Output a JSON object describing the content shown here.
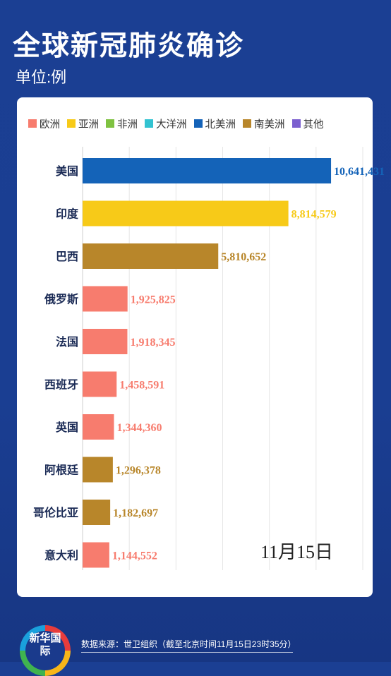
{
  "header": {
    "title": "全球新冠肺炎确诊",
    "unit": "单位:例"
  },
  "legend": [
    {
      "label": "欧洲",
      "color": "#f77c6e"
    },
    {
      "label": "亚洲",
      "color": "#f7ca18"
    },
    {
      "label": "非洲",
      "color": "#7fc241"
    },
    {
      "label": "大洋洲",
      "color": "#33c3d1"
    },
    {
      "label": "北美洲",
      "color": "#1463b8"
    },
    {
      "label": "南美洲",
      "color": "#b8862a"
    },
    {
      "label": "其他",
      "color": "#7b5fcf"
    }
  ],
  "date_label": "11月15日",
  "footer": {
    "logo_text": "新华国际",
    "source": "数据来源：世卫组织（截至北京时间11月15日23时35分）"
  },
  "chart_data": {
    "type": "bar",
    "orientation": "horizontal",
    "categories": [
      "美国",
      "印度",
      "巴西",
      "俄罗斯",
      "法国",
      "西班牙",
      "英国",
      "阿根廷",
      "哥伦比亚",
      "意大利"
    ],
    "values": [
      10641431,
      8814579,
      5810652,
      1925825,
      1918345,
      1458591,
      1344360,
      1296378,
      1182697,
      1144552
    ],
    "value_labels": [
      "10,641,431",
      "8,814,579",
      "5,810,652",
      "1,925,825",
      "1,918,345",
      "1,458,591",
      "1,344,360",
      "1,296,378",
      "1,182,697",
      "1,144,552"
    ],
    "continents": [
      "北美洲",
      "亚洲",
      "南美洲",
      "欧洲",
      "欧洲",
      "欧洲",
      "欧洲",
      "南美洲",
      "南美洲",
      "欧洲"
    ],
    "colors": [
      "#1463b8",
      "#f7ca18",
      "#b8862a",
      "#f77c6e",
      "#f77c6e",
      "#f77c6e",
      "#f77c6e",
      "#b8862a",
      "#b8862a",
      "#f77c6e"
    ],
    "xlim": [
      0,
      12000000
    ],
    "grid": true,
    "legend_position": "top"
  }
}
